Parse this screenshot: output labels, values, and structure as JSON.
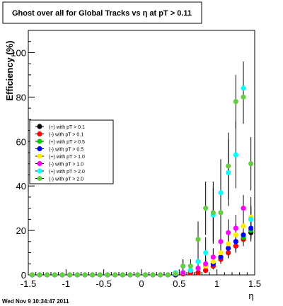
{
  "chart_data": {
    "type": "scatter",
    "title": "Ghost over all for Global Tracks vs η at pT > 0.11",
    "xlabel": "η",
    "ylabel": "Efficiency (%)",
    "xlim": [
      -1.5,
      1.5
    ],
    "ylim": [
      0,
      110
    ],
    "x_ticks": [
      -1.5,
      -1,
      -0.5,
      0,
      0.5,
      1,
      1.5
    ],
    "x_tick_labels": [
      "-1.5",
      "-1",
      "-0.5",
      "0",
      "0.5",
      "1",
      "1.5"
    ],
    "y_ticks": [
      0,
      20,
      40,
      60,
      80,
      100
    ],
    "y_tick_labels": [
      "0",
      "20",
      "40",
      "60",
      "80",
      "100"
    ],
    "grid": false,
    "legend_position": "left",
    "footer": "Wed Nov  9 10:34:47 2011",
    "series": [
      {
        "name": "(+) with pT > 0.1",
        "color": "#000000",
        "x": [
          -1.45,
          -1.35,
          -1.25,
          -1.15,
          -1.05,
          -0.95,
          -0.85,
          -0.75,
          -0.65,
          -0.55,
          -0.45,
          -0.35,
          -0.25,
          -0.15,
          -0.05,
          0.05,
          0.15,
          0.25,
          0.35,
          0.45,
          0.55,
          0.65,
          0.75,
          0.85,
          0.95,
          1.05,
          1.15,
          1.25,
          1.35,
          1.45
        ],
        "y": [
          0,
          0,
          0,
          0,
          0,
          0,
          0,
          0,
          0,
          0,
          0,
          0,
          0,
          0,
          0,
          0,
          0,
          0,
          0,
          0,
          0.5,
          1,
          1,
          2,
          4,
          7,
          10,
          13,
          16,
          19
        ],
        "err": [
          0,
          0,
          0,
          0,
          0,
          0,
          0,
          0,
          0,
          0,
          0,
          0,
          0,
          0,
          0,
          0,
          0,
          0,
          0,
          0,
          0.5,
          0.8,
          0.8,
          1,
          1.5,
          2,
          2.5,
          3,
          3,
          3
        ]
      },
      {
        "name": "(-) with pT > 0.1",
        "color": "#ff0000",
        "x": [
          -1.45,
          -1.35,
          -1.25,
          -1.15,
          -1.05,
          -0.95,
          -0.85,
          -0.75,
          -0.65,
          -0.55,
          -0.45,
          -0.35,
          -0.25,
          -0.15,
          -0.05,
          0.05,
          0.15,
          0.25,
          0.35,
          0.45,
          0.55,
          0.65,
          0.75,
          0.85,
          0.95,
          1.05,
          1.15,
          1.25,
          1.35,
          1.45
        ],
        "y": [
          0,
          0,
          0,
          0,
          0,
          0,
          0,
          0,
          0,
          0,
          0,
          0,
          0,
          0,
          0,
          0,
          0,
          0,
          0,
          0,
          0.5,
          1,
          1,
          2,
          4,
          7,
          10,
          13,
          16,
          20
        ],
        "err": [
          0,
          0,
          0,
          0,
          0,
          0,
          0,
          0,
          0,
          0,
          0,
          0,
          0,
          0,
          0,
          0,
          0,
          0,
          0,
          0,
          0.5,
          0.8,
          0.8,
          1,
          1.5,
          2,
          2.5,
          3,
          3,
          3
        ]
      },
      {
        "name": "(+) with pT > 0.5",
        "color": "#00cc00",
        "x": [
          -1.45,
          -1.35,
          -1.25,
          -1.15,
          -1.05,
          -0.95,
          -0.85,
          -0.75,
          -0.65,
          -0.55,
          -0.45,
          -0.35,
          -0.25,
          -0.15,
          -0.05,
          0.05,
          0.15,
          0.25,
          0.35,
          0.45,
          0.55,
          0.65,
          0.75,
          0.85,
          0.95,
          1.05,
          1.15,
          1.25,
          1.35,
          1.45
        ],
        "y": [
          0,
          0,
          0,
          0,
          0,
          0,
          0,
          0,
          0,
          0,
          0,
          0,
          0,
          0,
          0,
          0,
          0,
          0,
          0,
          0,
          1,
          2,
          3,
          4,
          5,
          8,
          12,
          15,
          17,
          20
        ],
        "err": [
          0,
          0,
          0,
          0,
          0,
          0,
          0,
          0,
          0,
          0,
          0,
          0,
          0,
          0,
          0,
          0,
          0,
          0,
          0,
          0,
          1,
          1,
          1.5,
          2,
          2,
          3,
          3.5,
          4,
          4,
          4
        ]
      },
      {
        "name": "(-) with pT > 0.5",
        "color": "#0000ff",
        "x": [
          -1.45,
          -1.35,
          -1.25,
          -1.15,
          -1.05,
          -0.95,
          -0.85,
          -0.75,
          -0.65,
          -0.55,
          -0.45,
          -0.35,
          -0.25,
          -0.15,
          -0.05,
          0.05,
          0.15,
          0.25,
          0.35,
          0.45,
          0.55,
          0.65,
          0.75,
          0.85,
          0.95,
          1.05,
          1.15,
          1.25,
          1.35,
          1.45
        ],
        "y": [
          0,
          0,
          0,
          0,
          0,
          0,
          0,
          0,
          0,
          0,
          0,
          0,
          0,
          0,
          0,
          0,
          0,
          0,
          0,
          0,
          1,
          2,
          3,
          4,
          5,
          8,
          12,
          15,
          18,
          21
        ],
        "err": [
          0,
          0,
          0,
          0,
          0,
          0,
          0,
          0,
          0,
          0,
          0,
          0,
          0,
          0,
          0,
          0,
          0,
          0,
          0,
          0,
          1,
          1,
          1.5,
          2,
          2,
          3,
          3.5,
          4,
          4,
          4
        ]
      },
      {
        "name": "(+) with pT > 1.0",
        "color": "#ffee00",
        "x": [
          -1.45,
          -1.35,
          -1.25,
          -1.15,
          -1.05,
          -0.95,
          -0.85,
          -0.75,
          -0.65,
          -0.55,
          -0.45,
          -0.35,
          -0.25,
          -0.15,
          -0.05,
          0.05,
          0.15,
          0.25,
          0.35,
          0.45,
          0.55,
          0.65,
          0.75,
          0.85,
          0.95,
          1.05,
          1.15,
          1.25,
          1.35,
          1.45
        ],
        "y": [
          0,
          0,
          0,
          0,
          0,
          0,
          0,
          0,
          0,
          0,
          0,
          0,
          0,
          0,
          0,
          0,
          0,
          0,
          0,
          0.5,
          1,
          2,
          3,
          4,
          6,
          10,
          14,
          18,
          22,
          26
        ],
        "err": [
          0,
          0,
          0,
          0,
          0,
          0,
          0,
          0,
          0,
          0,
          0,
          0,
          0,
          0,
          0,
          0,
          0,
          0,
          0,
          0.5,
          1,
          1.5,
          2,
          2.5,
          3,
          4,
          5,
          5,
          5,
          5
        ]
      },
      {
        "name": "(-) with pT > 1.0",
        "color": "#ff00ff",
        "x": [
          -1.45,
          -1.35,
          -1.25,
          -1.15,
          -1.05,
          -0.95,
          -0.85,
          -0.75,
          -0.65,
          -0.55,
          -0.45,
          -0.35,
          -0.25,
          -0.15,
          -0.05,
          0.05,
          0.15,
          0.25,
          0.35,
          0.45,
          0.55,
          0.65,
          0.75,
          0.85,
          0.95,
          1.05,
          1.15,
          1.25,
          1.35,
          1.45
        ],
        "y": [
          0,
          0,
          0,
          0,
          0,
          0,
          0,
          0,
          0,
          0,
          0,
          0,
          0,
          0,
          0,
          0,
          0,
          0,
          0,
          0.5,
          1,
          2,
          3,
          5,
          8,
          15,
          19,
          21,
          30,
          25
        ],
        "err": [
          0,
          0,
          0,
          0,
          0,
          0,
          0,
          0,
          0,
          0,
          0,
          0,
          0,
          0,
          0,
          0,
          0,
          0,
          0,
          0.5,
          1,
          1.5,
          2,
          3,
          4,
          5,
          6,
          6,
          6,
          6
        ]
      },
      {
        "name": "(+) with pT > 2.0",
        "color": "#00ffff",
        "x": [
          -1.45,
          -1.35,
          -1.25,
          -1.15,
          -1.05,
          -0.95,
          -0.85,
          -0.75,
          -0.65,
          -0.55,
          -0.45,
          -0.35,
          -0.25,
          -0.15,
          -0.05,
          0.05,
          0.15,
          0.25,
          0.35,
          0.45,
          0.55,
          0.65,
          0.75,
          0.85,
          0.95,
          1.05,
          1.15,
          1.25,
          1.35,
          1.45
        ],
        "y": [
          0,
          0,
          0,
          0,
          0,
          0,
          0,
          0,
          0,
          0,
          0,
          0,
          0,
          0,
          0,
          0,
          0,
          0,
          0,
          1,
          4,
          2,
          6,
          10,
          27,
          37,
          46,
          54,
          84,
          25
        ],
        "err": [
          0,
          0,
          0,
          0,
          0,
          0,
          0,
          0,
          0,
          0,
          0,
          0,
          0,
          0,
          0,
          0,
          0,
          0,
          0,
          1,
          3,
          2,
          5,
          7,
          12,
          15,
          15,
          15,
          12,
          10
        ]
      },
      {
        "name": "(-) with pT > 2.0",
        "color": "#66cc44",
        "x": [
          -1.45,
          -1.35,
          -1.25,
          -1.15,
          -1.05,
          -0.95,
          -0.85,
          -0.75,
          -0.65,
          -0.55,
          -0.45,
          -0.35,
          -0.25,
          -0.15,
          -0.05,
          0.05,
          0.15,
          0.25,
          0.35,
          0.45,
          0.55,
          0.65,
          0.75,
          0.85,
          0.95,
          1.05,
          1.15,
          1.25,
          1.35,
          1.45
        ],
        "y": [
          0,
          0,
          0,
          0,
          0,
          0,
          0,
          0,
          0,
          0,
          0,
          0,
          0,
          0,
          0,
          0,
          0,
          0,
          0,
          0.5,
          4,
          4,
          16,
          30,
          28,
          28,
          49,
          78,
          80,
          50
        ],
        "err": [
          0,
          0,
          0,
          0,
          0,
          0,
          0,
          0,
          0,
          0,
          0,
          0,
          0,
          0,
          0,
          0,
          0,
          0,
          0,
          0.5,
          3,
          3,
          8,
          12,
          14,
          15,
          15,
          12,
          12,
          12
        ]
      }
    ]
  }
}
